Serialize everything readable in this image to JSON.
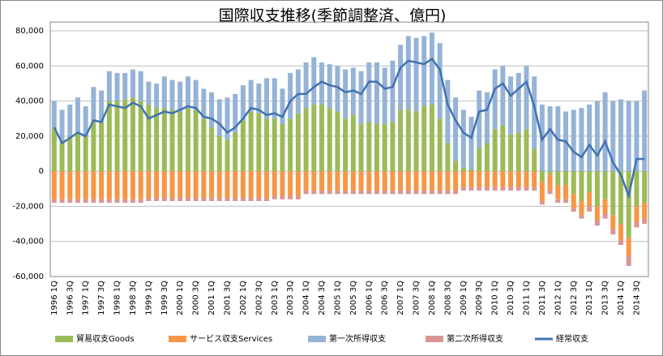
{
  "chart_data": {
    "type": "bar",
    "title": "国際収支推移(季節調整済、億円)",
    "categories": [
      "1996 1Q",
      null,
      "1996 3Q",
      null,
      "1997 1Q",
      null,
      "1997 3Q",
      null,
      "1998 1Q",
      null,
      "1998 3Q",
      null,
      "1999 1Q",
      null,
      "1999 3Q",
      null,
      "2000 1Q",
      null,
      "2000 3Q",
      null,
      "2001 1Q",
      null,
      "2001 3Q",
      null,
      "2002 1Q",
      null,
      "2002 3Q",
      null,
      "2003 1Q",
      null,
      "2003 3Q",
      null,
      "2004 1Q",
      null,
      "2004 3Q",
      null,
      "2005 1Q",
      null,
      "2005 3Q",
      null,
      "2006 1Q",
      null,
      "2006 3Q",
      null,
      "2007 1Q",
      null,
      "2007 3Q",
      null,
      "2008 1Q",
      null,
      "2008 3Q",
      null,
      "2009 1Q",
      null,
      "2009 3Q",
      null,
      "2010 1Q",
      null,
      "2010 3Q",
      null,
      "2011 1Q",
      null,
      "2011 3Q",
      null,
      "2012 1Q",
      null,
      "2012 3Q",
      null,
      "2013 1Q",
      null,
      "2013 3Q",
      null,
      "2014 1Q",
      null,
      "2014 3Q",
      null
    ],
    "series": [
      {
        "name": "貿易収支Goods",
        "type": "bar",
        "color": "#9bbb59",
        "values": [
          25000,
          18000,
          20000,
          22000,
          20000,
          29000,
          28000,
          40000,
          40000,
          41000,
          42000,
          40000,
          38000,
          36000,
          36000,
          35000,
          34000,
          36000,
          35000,
          30000,
          25000,
          20000,
          18000,
          22000,
          29000,
          34000,
          33000,
          30000,
          30000,
          27000,
          30000,
          33000,
          36000,
          38000,
          38000,
          36000,
          34000,
          30000,
          32000,
          27000,
          28000,
          27000,
          27000,
          28000,
          35000,
          35000,
          34000,
          37000,
          38000,
          30000,
          16000,
          6000,
          2000,
          1000,
          13000,
          16000,
          24000,
          26000,
          21000,
          22000,
          24000,
          13000,
          -6000,
          -2000,
          -8000,
          -8000,
          -13000,
          -17000,
          -12000,
          -20000,
          -16000,
          -25000,
          -30000,
          -38000,
          -20000,
          -18000
        ]
      },
      {
        "name": "サービス収支Services",
        "type": "bar",
        "color": "#f79646",
        "values": [
          -16000,
          -16000,
          -16000,
          -16000,
          -16000,
          -16000,
          -16000,
          -16000,
          -16000,
          -16000,
          -16000,
          -16000,
          -15000,
          -15000,
          -15000,
          -15000,
          -15000,
          -15000,
          -15000,
          -15000,
          -15000,
          -15000,
          -15000,
          -15000,
          -15000,
          -15000,
          -15000,
          -15000,
          -14000,
          -14000,
          -14000,
          -14000,
          -11000,
          -11000,
          -11000,
          -11000,
          -11000,
          -11000,
          -11000,
          -11000,
          -11000,
          -11000,
          -11000,
          -11000,
          -11000,
          -11000,
          -11000,
          -11000,
          -11000,
          -11000,
          -11000,
          -11000,
          -9000,
          -9000,
          -9000,
          -9000,
          -9000,
          -9000,
          -9000,
          -9000,
          -9000,
          -9000,
          -11000,
          -9000,
          -8000,
          -8000,
          -8000,
          -8000,
          -8000,
          -8000,
          -8000,
          -8000,
          -9000,
          -10000,
          -9000,
          -9000
        ]
      },
      {
        "name": "第一次所得収支",
        "type": "bar",
        "color": "#95b3d7",
        "values": [
          15000,
          17000,
          18000,
          20000,
          17000,
          19000,
          18000,
          17000,
          16000,
          15000,
          16000,
          17000,
          13000,
          14000,
          18000,
          17000,
          17000,
          18000,
          17000,
          17000,
          20000,
          21000,
          24000,
          22000,
          20000,
          18000,
          17000,
          23000,
          23000,
          20000,
          26000,
          25000,
          26000,
          27000,
          24000,
          25000,
          26000,
          28000,
          27000,
          30000,
          34000,
          35000,
          32000,
          35000,
          37000,
          42000,
          42000,
          40000,
          41000,
          43000,
          36000,
          36000,
          33000,
          30000,
          33000,
          29000,
          34000,
          34000,
          33000,
          34000,
          36000,
          41000,
          38000,
          37000,
          37000,
          34000,
          35000,
          36000,
          38000,
          40000,
          45000,
          40000,
          41000,
          40000,
          40000,
          46000
        ]
      },
      {
        "name": "第二次所得収支",
        "type": "bar",
        "color": "#d99694",
        "values": [
          -2000,
          -2000,
          -2000,
          -2000,
          -2000,
          -2000,
          -2000,
          -2000,
          -2000,
          -2000,
          -2000,
          -2000,
          -2000,
          -2000,
          -2000,
          -2000,
          -2000,
          -2000,
          -2000,
          -2000,
          -2000,
          -2000,
          -2000,
          -2000,
          -2000,
          -2000,
          -2000,
          -2000,
          -2000,
          -2000,
          -2000,
          -2000,
          -2000,
          -2000,
          -2000,
          -2000,
          -2000,
          -2000,
          -2000,
          -2000,
          -2000,
          -2000,
          -2000,
          -2000,
          -2000,
          -2000,
          -2000,
          -2000,
          -2000,
          -2000,
          -2000,
          -2000,
          -2000,
          -2000,
          -2000,
          -2000,
          -2000,
          -2000,
          -2000,
          -2000,
          -2000,
          -2000,
          -2000,
          -2000,
          -2000,
          -2000,
          -2000,
          -2000,
          -3000,
          -3000,
          -3000,
          -3000,
          -3000,
          -6000,
          -3000,
          -3000
        ]
      },
      {
        "name": "経常収支",
        "type": "line",
        "color": "#4272b0",
        "values": [
          25000,
          16000,
          19000,
          22000,
          20000,
          29000,
          28000,
          38000,
          37000,
          36000,
          39000,
          37000,
          30000,
          32000,
          34000,
          33000,
          35000,
          37000,
          36000,
          31000,
          30000,
          27000,
          22000,
          25000,
          30000,
          36000,
          35000,
          32000,
          33000,
          31000,
          40000,
          44000,
          44000,
          48000,
          51000,
          49000,
          48000,
          45000,
          46000,
          44000,
          51000,
          51000,
          47000,
          48000,
          59000,
          63000,
          62000,
          61000,
          64000,
          58000,
          38000,
          29000,
          22000,
          19000,
          34000,
          35000,
          47000,
          50000,
          43000,
          47000,
          51000,
          37000,
          18000,
          24000,
          18000,
          17000,
          11000,
          8000,
          15000,
          9000,
          17000,
          5000,
          -2000,
          -14000,
          7000,
          7000
        ]
      }
    ],
    "ylim": [
      -60000,
      85000
    ],
    "yticks": [
      {
        "value": -60000,
        "label": "-60,000"
      },
      {
        "value": -40000,
        "label": "-40,000"
      },
      {
        "value": -20000,
        "label": "-20,000"
      },
      0,
      {
        "value": 20000,
        "label": "20,000"
      },
      {
        "value": 40000,
        "label": "40,000"
      },
      {
        "value": 60000,
        "label": "60,000"
      },
      {
        "value": 80000,
        "label": "80,000"
      }
    ],
    "grid": true,
    "legend": "bottom"
  }
}
